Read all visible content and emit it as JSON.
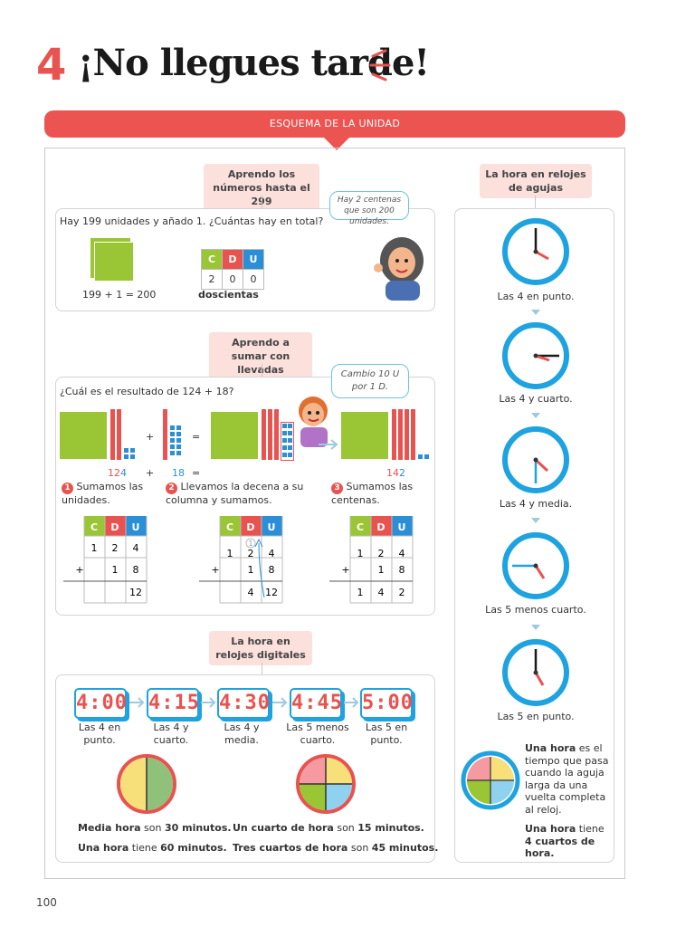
{
  "header": {
    "number": "4",
    "title": "¡No llegues tarde!"
  },
  "banner": {
    "label": "ESQUEMA DE LA UNIDAD"
  },
  "section1": {
    "pill": "Aprendo los números hasta el 299",
    "question": "Hay 199 unidades y añado 1. ¿Cuántas hay en total?",
    "equation": "199 + 1 = 200",
    "bubble": "Hay 2 centenas que son 200 unidades.",
    "table_head": [
      "C",
      "D",
      "U"
    ],
    "table_row": [
      "2",
      "0",
      "0"
    ],
    "answer": "doscientas"
  },
  "section2": {
    "pill": "Aprendo a sumar con llevadas",
    "question": "¿Cuál es el resultado de 124 + 18?",
    "bubble": "Cambio 10 U por 1 D.",
    "plus": "+",
    "equals": "=",
    "num1_a": "12",
    "num1_b": "4",
    "num2": "18",
    "eq2": "=",
    "res_a": "14",
    "res_b": "2",
    "step1_num": "1",
    "step1": "Sumamos las unidades.",
    "step2_num": "2",
    "step2": "Llevamos la decena a su columna y sumamos.",
    "step3_num": "3",
    "step3": "Sumamos las centenas.",
    "carry": "1",
    "tables": [
      {
        "head": [
          "C",
          "D",
          "U"
        ],
        "r1": [
          "1",
          "2",
          "4"
        ],
        "r2": [
          "+",
          "",
          "1",
          "8"
        ],
        "r3": [
          "",
          "",
          "12"
        ]
      },
      {
        "head": [
          "C",
          "D",
          "U"
        ],
        "r1": [
          "1",
          "2",
          "4"
        ],
        "r2": [
          "+",
          "",
          "1",
          "8"
        ],
        "r3": [
          "",
          "4",
          "12"
        ]
      },
      {
        "head": [
          "C",
          "D",
          "U"
        ],
        "r1": [
          "1",
          "2",
          "4"
        ],
        "r2": [
          "+",
          "",
          "1",
          "8"
        ],
        "r3": [
          "1",
          "4",
          "2"
        ]
      }
    ]
  },
  "section3": {
    "pill": "La hora en relojes digitales",
    "digitals": [
      {
        "time": "4:00",
        "label": "Las 4 en punto."
      },
      {
        "time": "4:15",
        "label": "Las 4 y cuarto."
      },
      {
        "time": "4:30",
        "label": "Las 4 y media."
      },
      {
        "time": "4:45",
        "label": "Las 5 menos cuarto."
      },
      {
        "time": "5:00",
        "label": "Las 5 en punto."
      }
    ],
    "half_a": "Media hora",
    "half_b": " son ",
    "half_c": "30 minutos.",
    "hour_a": "Una hora",
    "hour_b": " tiene ",
    "hour_c": "60 minutos.",
    "quarter_a": "Un cuarto de hora",
    "quarter_b": " son ",
    "quarter_c": "15 minutos.",
    "three_a": "Tres cuartos de hora",
    "three_b": " son ",
    "three_c": "45 minutos."
  },
  "section4": {
    "pill": "La hora en relojes de agujas",
    "clocks": [
      {
        "label": "Las 4  en punto."
      },
      {
        "label": "Las 4 y cuarto."
      },
      {
        "label": "Las 4 y media."
      },
      {
        "label": "Las 5 menos cuarto."
      },
      {
        "label": "Las 5 en punto."
      }
    ],
    "def_a": "Una hora",
    "def_b": " es el tiempo que pasa cuando la aguja larga da una vuelta completa al reloj.",
    "four_a": "Una hora",
    "four_b": " tiene ",
    "four_c": "4 cuartos de hora."
  },
  "page_number": "100"
}
